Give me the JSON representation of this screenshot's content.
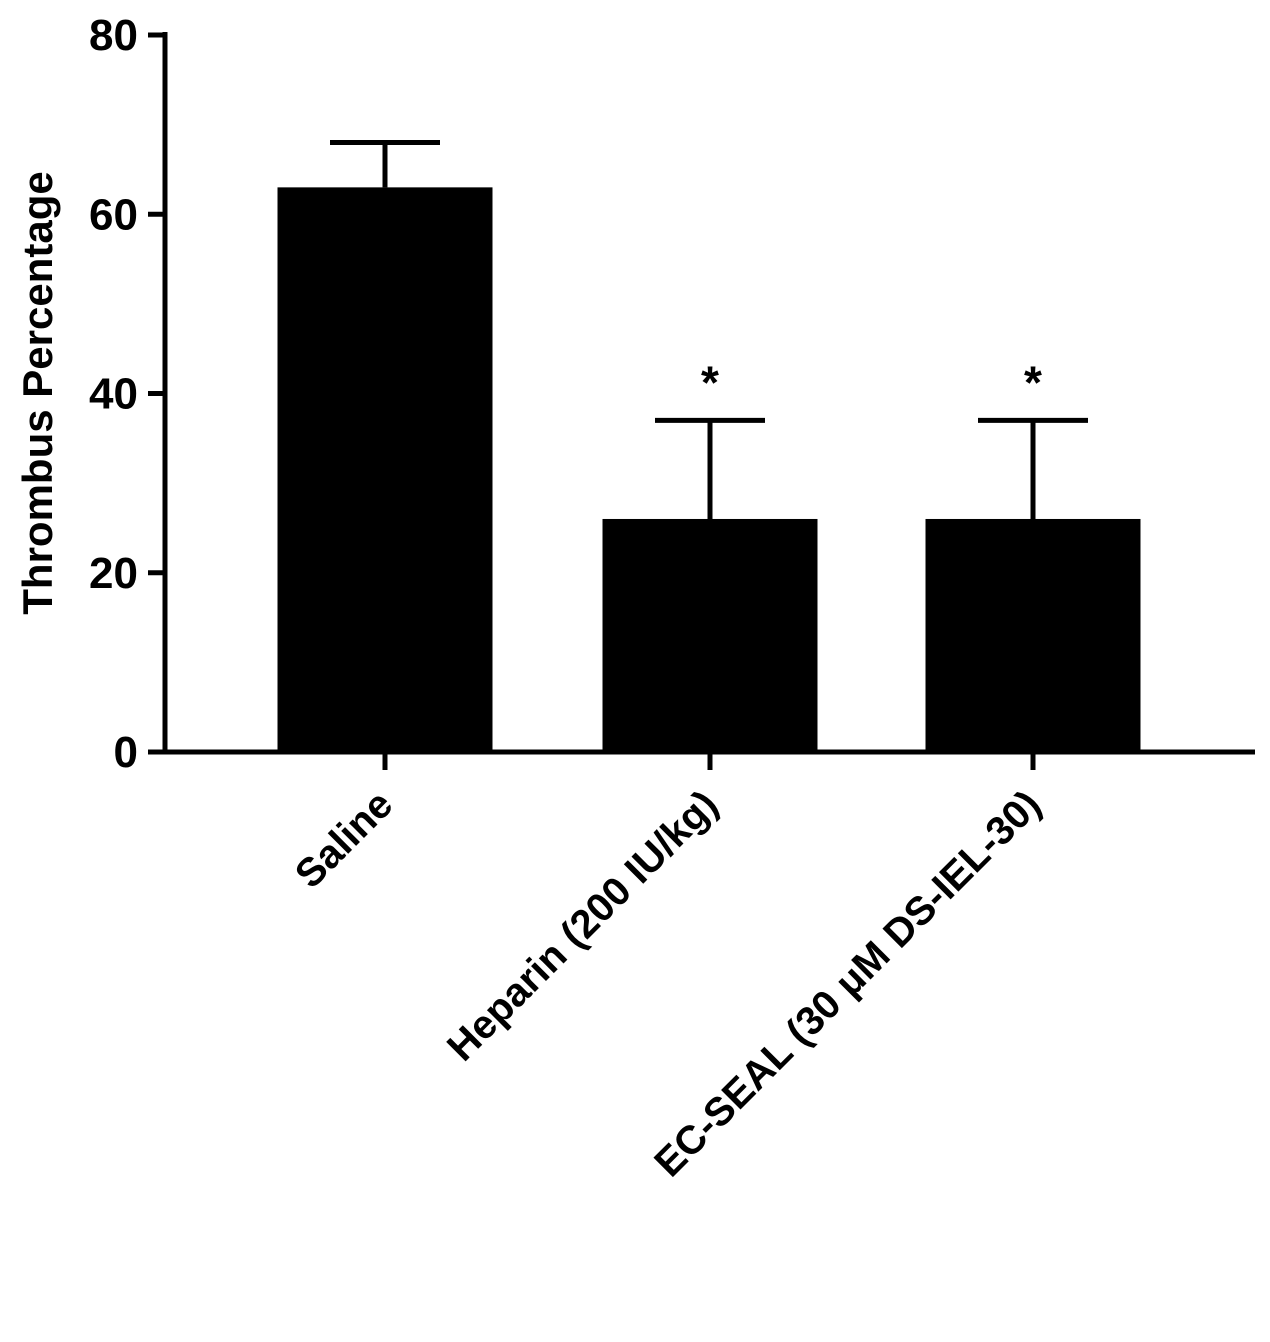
{
  "chart_data": {
    "type": "bar",
    "categories": [
      "Saline",
      "Heparin (200 IU/kg)",
      "EC-SEAL (30 μM DS-IEL-30)"
    ],
    "values": [
      63,
      26,
      26
    ],
    "error_upper": [
      68,
      37,
      37
    ],
    "significance": [
      "",
      "*",
      "*"
    ],
    "xlabel": "",
    "ylabel": "Thrombus Percentage",
    "ylim": [
      0,
      80
    ],
    "yticks": [
      "0",
      "20",
      "40",
      "60",
      "80"
    ],
    "bar_color": "#000000",
    "grid": false
  }
}
